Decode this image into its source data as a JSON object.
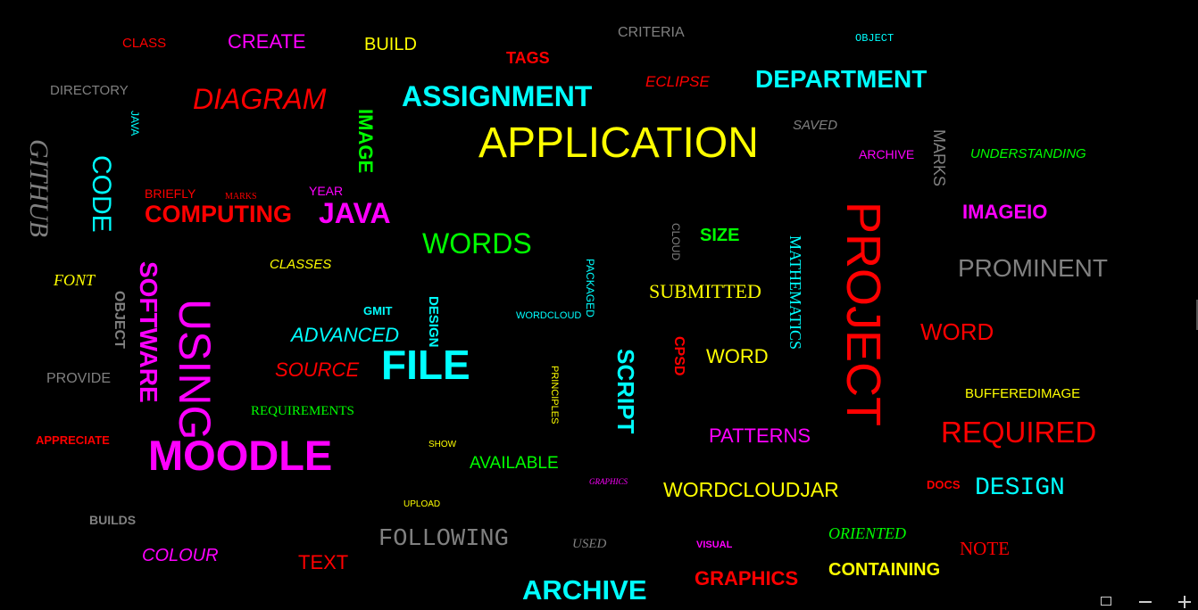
{
  "words": {
    "class": "CLASS",
    "create": "CREATE",
    "build": "BUILD",
    "criteria": "CRITERIA",
    "object_top": "OBJECT",
    "tags": "TAGS",
    "directory": "DIRECTORY",
    "diagram": "DIAGRAM",
    "assignment": "ASSIGNMENT",
    "eclipse": "ECLIPSE",
    "department": "DEPARTMENT",
    "java_small": "JAVA",
    "image": "IMAGE",
    "application": "APPLICATION",
    "saved": "SAVED",
    "github": "GITHUB",
    "code": "CODE",
    "archive_small": "ARCHIVE",
    "marks": "MARKS",
    "understanding": "UNDERSTANDING",
    "briefly": "BRIEFLY",
    "marks_small": "MARKS",
    "year": "YEAR",
    "computing": "COMPUTING",
    "java": "JAVA",
    "project": "PROJECT",
    "imageio": "IMAGEIO",
    "cloud": "CLOUD",
    "size": "SIZE",
    "words_word": "WORDS",
    "mathematics": "MATHEMATICS",
    "font": "FONT",
    "classes": "CLASSES",
    "software": "SOFTWARE",
    "packaged": "PACKAGED",
    "prominent": "PROMINENT",
    "submitted": "SUBMITTED",
    "object_left": "OBJECT",
    "using": "USING",
    "gmit": "GMIT",
    "design_vertical": "DESIGN",
    "wordcloud": "WORDCLOUD",
    "advanced": "ADVANCED",
    "word_red": "WORD",
    "cpsd": "CPSD",
    "word_yellow": "WORD",
    "source": "SOURCE",
    "file": "FILE",
    "script": "SCRIPT",
    "provide": "PROVIDE",
    "principles": "PRINCIPLES",
    "bufferedimage": "BUFFEREDIMAGE",
    "requirements": "REQUIREMENTS",
    "required": "REQUIRED",
    "appreciate": "APPRECIATE",
    "show": "SHOW",
    "patterns": "PATTERNS",
    "moodle": "MOODLE",
    "available": "AVAILABLE",
    "graphics_small": "GRAPHICS",
    "docs": "DOCS",
    "design": "DESIGN",
    "wordcloudjar": "WORDCLOUDJAR",
    "upload": "UPLOAD",
    "builds": "BUILDS",
    "oriented": "ORIENTED",
    "following": "FOLLOWING",
    "used": "USED",
    "visual": "VISUAL",
    "note": "NOTE",
    "colour": "COLOUR",
    "text": "TEXT",
    "graphics": "GRAPHICS",
    "containing": "CONTAINING",
    "archive": "ARCHIVE"
  },
  "toolbar": {
    "fit_icon": "fit-to-screen-icon",
    "zoom_out_icon": "minus-icon",
    "zoom_in_icon": "plus-icon"
  },
  "colors": {
    "background": "#000000",
    "red": "#ff0000",
    "magenta": "#ff00ff",
    "yellow": "#ffff00",
    "cyan": "#00ffff",
    "green": "#00ff00",
    "gray": "#808080"
  }
}
